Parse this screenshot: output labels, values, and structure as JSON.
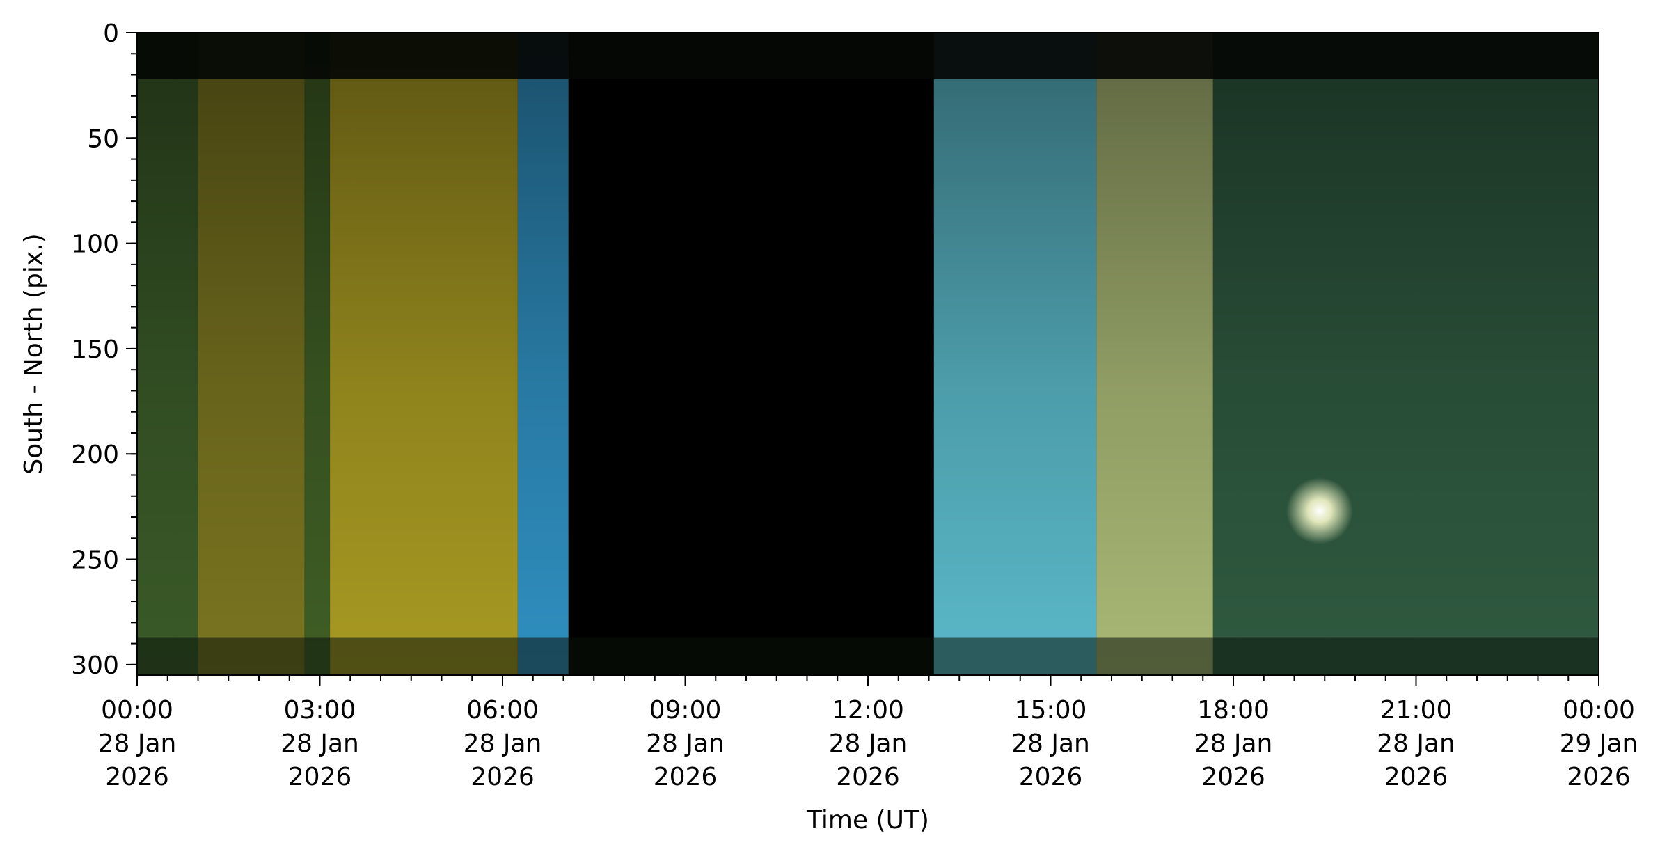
{
  "chart_data": {
    "type": "heatmap",
    "xlabel": "Time (UT)",
    "ylabel": "South - North (pix.)",
    "xlim": [
      "2026-01-28 00:00",
      "2026-01-29 00:00"
    ],
    "ylim": [
      305,
      0
    ],
    "y_inverted": true,
    "x_ticks": [
      {
        "time": "2026-01-28 00:00",
        "label": [
          "00:00",
          "28 Jan",
          "2026"
        ]
      },
      {
        "time": "2026-01-28 03:00",
        "label": [
          "03:00",
          "28 Jan",
          "2026"
        ]
      },
      {
        "time": "2026-01-28 06:00",
        "label": [
          "06:00",
          "28 Jan",
          "2026"
        ]
      },
      {
        "time": "2026-01-28 09:00",
        "label": [
          "09:00",
          "28 Jan",
          "2026"
        ]
      },
      {
        "time": "2026-01-28 12:00",
        "label": [
          "12:00",
          "28 Jan",
          "2026"
        ]
      },
      {
        "time": "2026-01-28 15:00",
        "label": [
          "15:00",
          "28 Jan",
          "2026"
        ]
      },
      {
        "time": "2026-01-28 18:00",
        "label": [
          "18:00",
          "28 Jan",
          "2026"
        ]
      },
      {
        "time": "2026-01-28 21:00",
        "label": [
          "21:00",
          "28 Jan",
          "2026"
        ]
      },
      {
        "time": "2026-01-29 00:00",
        "label": [
          "00:00",
          "29 Jan",
          "2026"
        ]
      }
    ],
    "x_minor_tick_interval_minutes": 30,
    "y_ticks": [
      0,
      50,
      100,
      150,
      200,
      250,
      300
    ],
    "y_minor_tick_interval": 10,
    "bands": [
      {
        "start": "2026-01-28 00:00",
        "end": "2026-01-28 01:00",
        "description": "dark green aurora",
        "color": "#3a5a28"
      },
      {
        "start": "2026-01-28 01:00",
        "end": "2026-01-28 02:45",
        "description": "olive to yellow glow",
        "color": "#7a7520"
      },
      {
        "start": "2026-01-28 02:45",
        "end": "2026-01-28 03:10",
        "description": "green streak",
        "color": "#3f5e25"
      },
      {
        "start": "2026-01-28 03:10",
        "end": "2026-01-28 06:15",
        "description": "bright yellow glow",
        "color": "#a89a22"
      },
      {
        "start": "2026-01-28 06:15",
        "end": "2026-01-28 07:05",
        "description": "blue twilight",
        "color": "#2f8fc0"
      },
      {
        "start": "2026-01-28 07:05",
        "end": "2026-01-28 13:05",
        "description": "daylight gap (black)",
        "color": "#000000"
      },
      {
        "start": "2026-01-28 13:05",
        "end": "2026-01-28 15:45",
        "description": "cyan twilight",
        "color": "#5ab8c8"
      },
      {
        "start": "2026-01-28 15:45",
        "end": "2026-01-28 17:40",
        "description": "pale yellow-green aurora",
        "color": "#a9b875"
      },
      {
        "start": "2026-01-28 17:40",
        "end": "2026-01-29 00:00",
        "description": "green aurora with moon",
        "color": "#2f5a40"
      }
    ],
    "moon_spot": {
      "time": "2026-01-28 19:25",
      "y": 227
    },
    "grid": false,
    "legend": "none"
  }
}
